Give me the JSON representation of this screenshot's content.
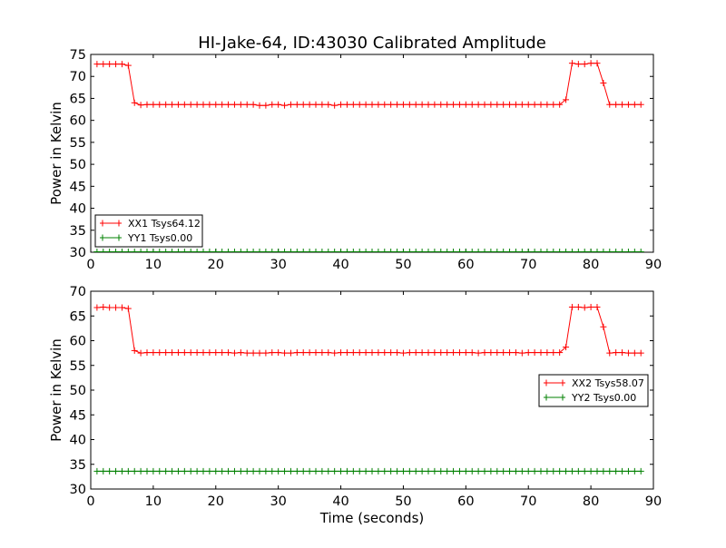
{
  "title": "HI-Jake-64, ID:43030 Calibrated Amplitude",
  "colors": {
    "red": "#ff0000",
    "green": "#008000",
    "axis": "#000000"
  },
  "chart_data": [
    {
      "type": "line",
      "title": "HI-Jake-64, ID:43030 Calibrated Amplitude",
      "xlabel": "",
      "ylabel": "Power in Kelvin",
      "xlim": [
        0,
        90
      ],
      "ylim": [
        30,
        75
      ],
      "xticks": [
        "0",
        "10",
        "20",
        "30",
        "40",
        "50",
        "60",
        "70",
        "80",
        "90"
      ],
      "yticks": [
        "30",
        "35",
        "40",
        "45",
        "50",
        "55",
        "60",
        "65",
        "70",
        "75"
      ],
      "grid": false,
      "legend_position": "lower-left",
      "series": [
        {
          "name": "XX1 Tsys64.12",
          "color": "#ff0000",
          "marker": "+",
          "x": [
            1,
            2,
            3,
            4,
            5,
            6,
            7,
            8,
            9,
            10,
            11,
            12,
            13,
            14,
            15,
            16,
            17,
            18,
            19,
            20,
            21,
            22,
            23,
            24,
            25,
            26,
            27,
            28,
            29,
            30,
            31,
            32,
            33,
            34,
            35,
            36,
            37,
            38,
            39,
            40,
            41,
            42,
            43,
            44,
            45,
            46,
            47,
            48,
            49,
            50,
            51,
            52,
            53,
            54,
            55,
            56,
            57,
            58,
            59,
            60,
            61,
            62,
            63,
            64,
            65,
            66,
            67,
            68,
            69,
            70,
            71,
            72,
            73,
            74,
            75,
            76,
            77,
            78,
            79,
            80,
            81,
            82,
            83,
            84,
            85,
            86,
            87,
            88
          ],
          "y": [
            72.8,
            72.8,
            72.8,
            72.8,
            72.8,
            72.5,
            64.0,
            63.5,
            63.6,
            63.6,
            63.6,
            63.6,
            63.6,
            63.6,
            63.6,
            63.6,
            63.6,
            63.6,
            63.6,
            63.6,
            63.6,
            63.6,
            63.6,
            63.6,
            63.6,
            63.6,
            63.4,
            63.4,
            63.6,
            63.6,
            63.4,
            63.6,
            63.6,
            63.6,
            63.6,
            63.6,
            63.6,
            63.6,
            63.4,
            63.6,
            63.6,
            63.6,
            63.6,
            63.6,
            63.6,
            63.6,
            63.6,
            63.6,
            63.6,
            63.6,
            63.6,
            63.6,
            63.6,
            63.6,
            63.6,
            63.6,
            63.6,
            63.6,
            63.6,
            63.6,
            63.6,
            63.6,
            63.6,
            63.6,
            63.6,
            63.6,
            63.6,
            63.6,
            63.6,
            63.6,
            63.6,
            63.6,
            63.6,
            63.6,
            63.6,
            64.7,
            73.0,
            72.8,
            72.8,
            73.0,
            73.0,
            68.5,
            63.6,
            63.6,
            63.6,
            63.6,
            63.6,
            63.6
          ]
        },
        {
          "name": "YY1 Tsys0.00",
          "color": "#008000",
          "marker": "+",
          "x": [
            1,
            2,
            3,
            4,
            5,
            6,
            7,
            8,
            9,
            10,
            11,
            12,
            13,
            14,
            15,
            16,
            17,
            18,
            19,
            20,
            21,
            22,
            23,
            24,
            25,
            26,
            27,
            28,
            29,
            30,
            31,
            32,
            33,
            34,
            35,
            36,
            37,
            38,
            39,
            40,
            41,
            42,
            43,
            44,
            45,
            46,
            47,
            48,
            49,
            50,
            51,
            52,
            53,
            54,
            55,
            56,
            57,
            58,
            59,
            60,
            61,
            62,
            63,
            64,
            65,
            66,
            67,
            68,
            69,
            70,
            71,
            72,
            73,
            74,
            75,
            76,
            77,
            78,
            79,
            80,
            81,
            82,
            83,
            84,
            85,
            86,
            87,
            88
          ],
          "y": [
            30.1,
            30.1,
            30.1,
            30.1,
            30.1,
            30.1,
            30.1,
            30.1,
            30.1,
            30.1,
            30.1,
            30.1,
            30.1,
            30.1,
            30.1,
            30.1,
            30.1,
            30.1,
            30.1,
            30.1,
            30.1,
            30.1,
            30.1,
            30.1,
            30.1,
            30.1,
            30.1,
            30.1,
            30.1,
            30.1,
            30.1,
            30.1,
            30.1,
            30.1,
            30.1,
            30.1,
            30.1,
            30.1,
            30.1,
            30.1,
            30.1,
            30.1,
            30.1,
            30.1,
            30.1,
            30.1,
            30.1,
            30.1,
            30.1,
            30.1,
            30.1,
            30.1,
            30.1,
            30.1,
            30.1,
            30.1,
            30.1,
            30.1,
            30.1,
            30.1,
            30.1,
            30.1,
            30.1,
            30.1,
            30.1,
            30.1,
            30.1,
            30.1,
            30.1,
            30.1,
            30.1,
            30.1,
            30.1,
            30.1,
            30.1,
            30.1,
            30.1,
            30.1,
            30.1,
            30.1,
            30.1,
            30.1,
            30.1,
            30.1,
            30.1,
            30.1,
            30.1,
            30.1
          ]
        }
      ]
    },
    {
      "type": "line",
      "title": "",
      "xlabel": "Time (seconds)",
      "ylabel": "Power in Kelvin",
      "xlim": [
        0,
        90
      ],
      "ylim": [
        30,
        70
      ],
      "xticks": [
        "0",
        "10",
        "20",
        "30",
        "40",
        "50",
        "60",
        "70",
        "80",
        "90"
      ],
      "yticks": [
        "30",
        "35",
        "40",
        "45",
        "50",
        "55",
        "60",
        "65",
        "70"
      ],
      "grid": false,
      "legend_position": "center-right",
      "series": [
        {
          "name": "XX2 Tsys58.07",
          "color": "#ff0000",
          "marker": "+",
          "x": [
            1,
            2,
            3,
            4,
            5,
            6,
            7,
            8,
            9,
            10,
            11,
            12,
            13,
            14,
            15,
            16,
            17,
            18,
            19,
            20,
            21,
            22,
            23,
            24,
            25,
            26,
            27,
            28,
            29,
            30,
            31,
            32,
            33,
            34,
            35,
            36,
            37,
            38,
            39,
            40,
            41,
            42,
            43,
            44,
            45,
            46,
            47,
            48,
            49,
            50,
            51,
            52,
            53,
            54,
            55,
            56,
            57,
            58,
            59,
            60,
            61,
            62,
            63,
            64,
            65,
            66,
            67,
            68,
            69,
            70,
            71,
            72,
            73,
            74,
            75,
            76,
            77,
            78,
            79,
            80,
            81,
            82,
            83,
            84,
            85,
            86,
            87,
            88
          ],
          "y": [
            66.7,
            66.8,
            66.7,
            66.7,
            66.7,
            66.5,
            58.0,
            57.5,
            57.6,
            57.6,
            57.6,
            57.6,
            57.6,
            57.6,
            57.6,
            57.6,
            57.6,
            57.6,
            57.6,
            57.6,
            57.6,
            57.6,
            57.5,
            57.6,
            57.5,
            57.5,
            57.5,
            57.5,
            57.6,
            57.6,
            57.5,
            57.5,
            57.6,
            57.6,
            57.6,
            57.6,
            57.6,
            57.6,
            57.5,
            57.6,
            57.6,
            57.6,
            57.6,
            57.6,
            57.6,
            57.6,
            57.6,
            57.6,
            57.6,
            57.5,
            57.6,
            57.6,
            57.6,
            57.6,
            57.6,
            57.6,
            57.6,
            57.6,
            57.6,
            57.6,
            57.6,
            57.5,
            57.6,
            57.6,
            57.6,
            57.6,
            57.6,
            57.6,
            57.5,
            57.6,
            57.6,
            57.6,
            57.6,
            57.6,
            57.6,
            58.7,
            66.8,
            66.8,
            66.7,
            66.8,
            66.8,
            62.8,
            57.5,
            57.6,
            57.6,
            57.5,
            57.5,
            57.5
          ]
        },
        {
          "name": "YY2 Tsys0.00",
          "color": "#008000",
          "marker": "+",
          "x": [
            1,
            2,
            3,
            4,
            5,
            6,
            7,
            8,
            9,
            10,
            11,
            12,
            13,
            14,
            15,
            16,
            17,
            18,
            19,
            20,
            21,
            22,
            23,
            24,
            25,
            26,
            27,
            28,
            29,
            30,
            31,
            32,
            33,
            34,
            35,
            36,
            37,
            38,
            39,
            40,
            41,
            42,
            43,
            44,
            45,
            46,
            47,
            48,
            49,
            50,
            51,
            52,
            53,
            54,
            55,
            56,
            57,
            58,
            59,
            60,
            61,
            62,
            63,
            64,
            65,
            66,
            67,
            68,
            69,
            70,
            71,
            72,
            73,
            74,
            75,
            76,
            77,
            78,
            79,
            80,
            81,
            82,
            83,
            84,
            85,
            86,
            87,
            88
          ],
          "y": [
            33.6,
            33.6,
            33.6,
            33.6,
            33.6,
            33.6,
            33.6,
            33.6,
            33.6,
            33.6,
            33.6,
            33.6,
            33.6,
            33.6,
            33.6,
            33.6,
            33.6,
            33.6,
            33.6,
            33.6,
            33.6,
            33.6,
            33.6,
            33.6,
            33.6,
            33.6,
            33.6,
            33.6,
            33.6,
            33.6,
            33.6,
            33.6,
            33.6,
            33.6,
            33.6,
            33.6,
            33.6,
            33.6,
            33.6,
            33.6,
            33.6,
            33.6,
            33.6,
            33.6,
            33.6,
            33.6,
            33.6,
            33.6,
            33.6,
            33.6,
            33.6,
            33.6,
            33.6,
            33.6,
            33.6,
            33.6,
            33.6,
            33.6,
            33.6,
            33.6,
            33.6,
            33.6,
            33.6,
            33.6,
            33.6,
            33.6,
            33.6,
            33.6,
            33.6,
            33.6,
            33.6,
            33.6,
            33.6,
            33.6,
            33.6,
            33.6,
            33.6,
            33.6,
            33.6,
            33.6,
            33.6,
            33.6,
            33.6,
            33.6,
            33.6,
            33.6,
            33.6,
            33.6
          ]
        }
      ]
    }
  ]
}
